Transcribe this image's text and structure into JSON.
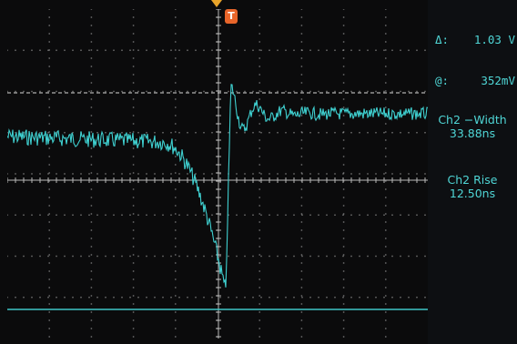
{
  "trigger": {
    "label": "T"
  },
  "cursor": {
    "delta_symbol": "Δ:",
    "delta_value": "1.03 V",
    "at_symbol": "@:",
    "at_value": "352mV"
  },
  "measurements": [
    {
      "name": "Ch2 −Width",
      "value": "33.88ns"
    },
    {
      "name": "Ch2 Rise",
      "value": "12.50ns"
    }
  ],
  "colors": {
    "trace": "#3fd0d0",
    "grid": "#b8b8b8",
    "cursor_line": "#d8d8d8",
    "trigger_marker": "#e8652a",
    "baseline": "#3fc6c6"
  },
  "icons": [
    "trigger-arrow-icon",
    "trigger-marker-icon"
  ]
}
